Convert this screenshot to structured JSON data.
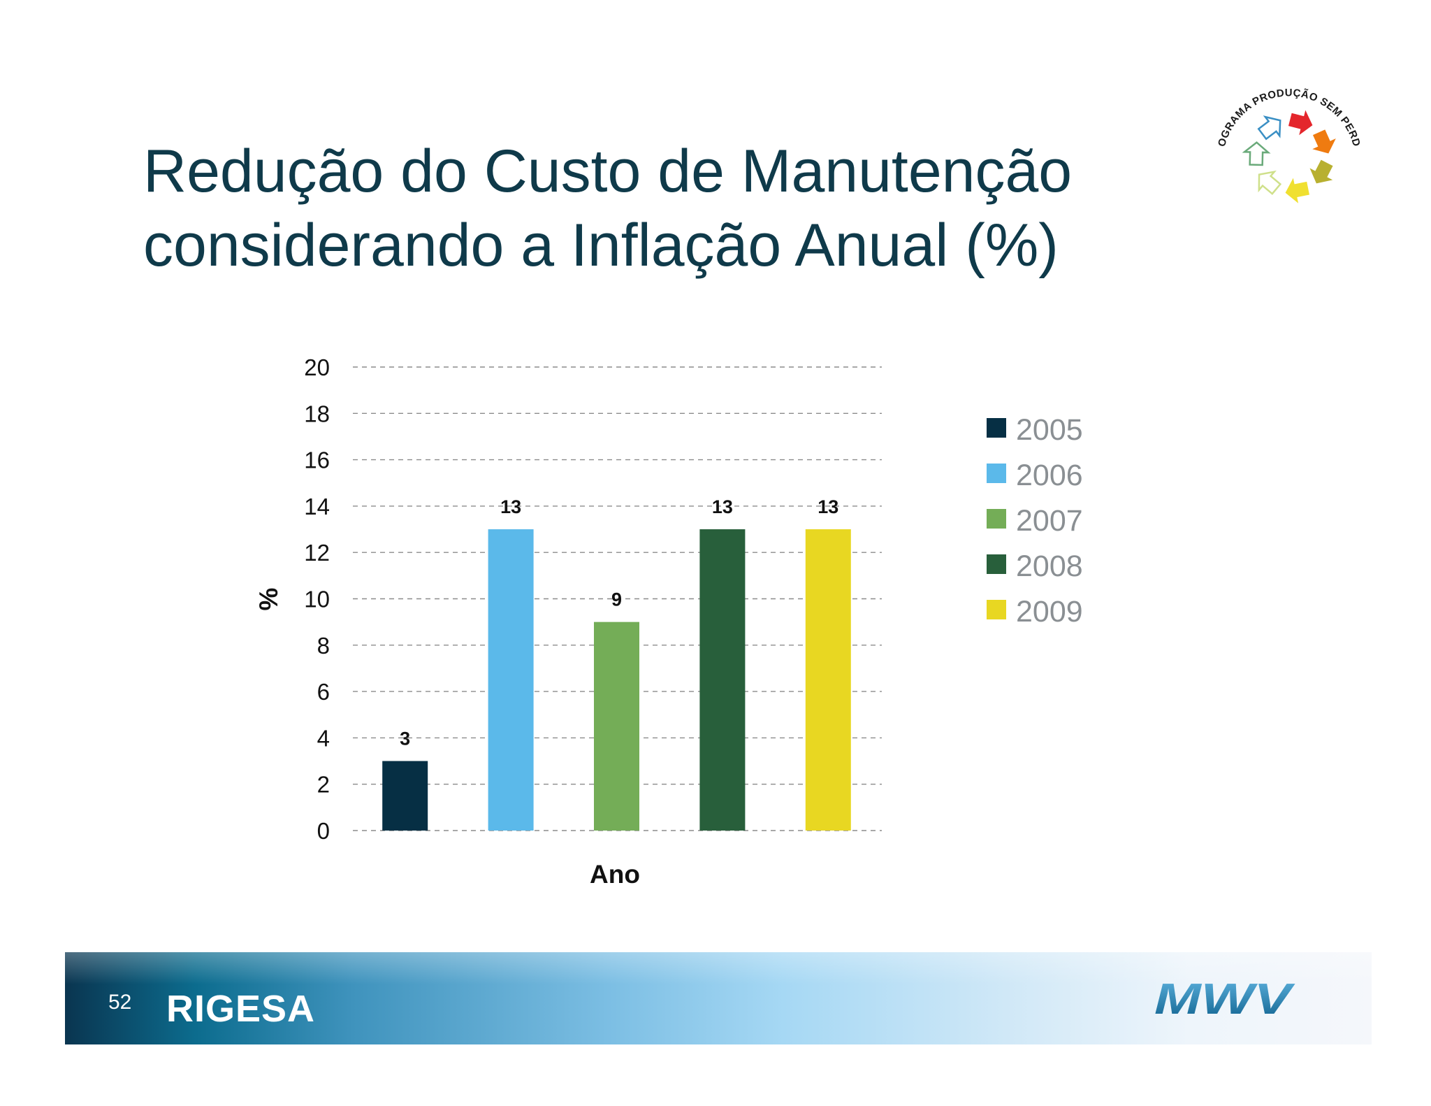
{
  "slide": {
    "title_line1": "Redução do Custo de Manutenção",
    "title_line2": "considerando a Inflação Anual (%)",
    "page_number": "52"
  },
  "logo_seal": {
    "text": "PROGRAMA PRODUÇÃO SEM PERDAS",
    "arrow_colors": [
      "#e4262c",
      "#ef7b10",
      "#b8b030",
      "#f0e030",
      "#cfe08a",
      "#6aaa7a",
      "#3a8fc4"
    ]
  },
  "footer": {
    "brand_left": "RIGESA",
    "brand_right": "MWV"
  },
  "chart_data": {
    "type": "bar",
    "categories": [
      "2005",
      "2006",
      "2007",
      "2008",
      "2009"
    ],
    "values": [
      3,
      13,
      9,
      13,
      13
    ],
    "colors": [
      "#062f44",
      "#5bb9ea",
      "#74ad57",
      "#285f3b",
      "#e8d722"
    ],
    "title": "",
    "xlabel": "Ano",
    "ylabel": "%",
    "ylim": [
      0,
      20
    ],
    "yticks": [
      0,
      2,
      4,
      6,
      8,
      10,
      12,
      14,
      16,
      18,
      20
    ],
    "grid": true,
    "legend": {
      "position": "right",
      "entries": [
        "2005",
        "2006",
        "2007",
        "2008",
        "2009"
      ]
    },
    "data_labels": [
      "3",
      "13",
      "9",
      "13",
      "13"
    ]
  }
}
